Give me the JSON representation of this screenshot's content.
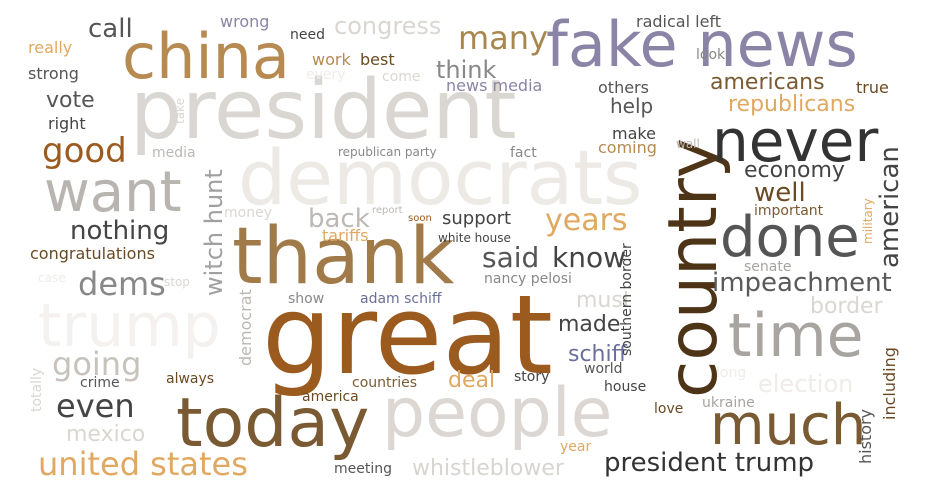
{
  "palette": {
    "dark": "#3b3b3b",
    "gray": "#8f8f8f",
    "light_gray": "#dad6d2",
    "pale": "#efece9",
    "brown": "#9b5a1e",
    "dark_brown": "#5a3a14",
    "tan": "#b68a50",
    "gold": "#e0a860",
    "lavender": "#8c84a6"
  },
  "words": [
    "president",
    "great",
    "thank",
    "democrats",
    "people",
    "country",
    "today",
    "fake news",
    "china",
    "never",
    "want",
    "done",
    "trump",
    "time",
    "much",
    "united states",
    "good",
    "many",
    "years",
    "witch hunt",
    "impeachment",
    "american",
    "dems",
    "going",
    "even",
    "president trump",
    "whistleblower",
    "nothing",
    "said",
    "know",
    "economy",
    "well",
    "americans",
    "republicans",
    "congress",
    "call",
    "vote",
    "think",
    "back",
    "border",
    "election",
    "mexico",
    "deal",
    "schiff",
    "made",
    "must",
    "history",
    "including",
    "support",
    "help",
    "make",
    "coming",
    "others",
    "radical left",
    "look",
    "true",
    "news media",
    "work",
    "best",
    "need",
    "wrong",
    "really",
    "strong",
    "right",
    "media",
    "congratulations",
    "tariffs",
    "white house",
    "nancy pelosi",
    "adam schiff",
    "show",
    "always",
    "crime",
    "countries",
    "america",
    "story",
    "world",
    "house",
    "meeting",
    "year",
    "love",
    "ukraine",
    "senate",
    "important",
    "military",
    "long",
    "southern border",
    "democrat",
    "totally",
    "case",
    "stop",
    "money",
    "report",
    "soon",
    "republican party",
    "fact",
    "take",
    "every",
    "come",
    "wall"
  ]
}
